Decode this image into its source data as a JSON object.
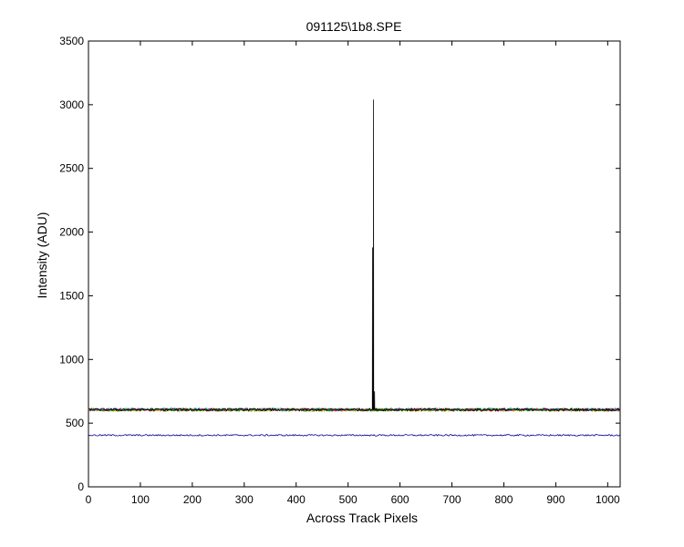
{
  "chart_data": {
    "type": "line",
    "title": "091125\\1b8.SPE",
    "xlabel": "Across Track Pixels",
    "ylabel": "Intensity (ADU)",
    "xlim": [
      0,
      1024
    ],
    "ylim": [
      0,
      3500
    ],
    "xticks": [
      0,
      100,
      200,
      300,
      400,
      500,
      600,
      700,
      800,
      900,
      1000
    ],
    "yticks": [
      0,
      500,
      1000,
      1500,
      2000,
      2500,
      3000,
      3500
    ],
    "grid": false,
    "legend": "none",
    "series": [
      {
        "color": "#ff0000",
        "baseline": 605,
        "noise": 12
      },
      {
        "color": "#00bfbf",
        "baseline": 608,
        "noise": 12
      },
      {
        "color": "#bfbf00",
        "baseline": 603,
        "noise": 12
      },
      {
        "color": "#bf00bf",
        "baseline": 606,
        "noise": 10
      },
      {
        "color": "#008000",
        "baseline": 604,
        "noise": 10
      },
      {
        "color": "#000000",
        "baseline": 606,
        "noise": 10,
        "peaks": [
          {
            "x": 547,
            "y": 1880
          },
          {
            "x": 549,
            "y": 3040
          },
          {
            "x": 551,
            "y": 750
          }
        ]
      },
      {
        "color": "#00008b",
        "baseline": 405,
        "noise": 6
      }
    ]
  }
}
